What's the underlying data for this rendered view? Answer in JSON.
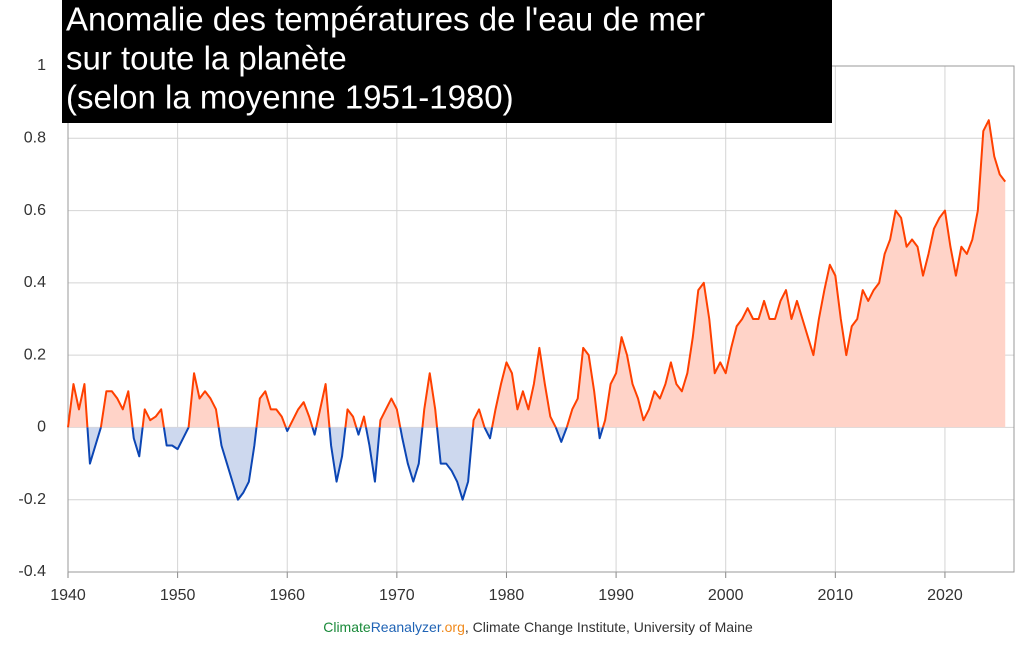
{
  "chart_data": {
    "type": "area-line",
    "title": [
      "Anomalie des températures de l'eau de mer",
      "sur toute la planète",
      "(selon la moyenne 1951-1980)"
    ],
    "source": [
      "Climate",
      "Reanalyzer",
      ".org",
      ", Climate Change Institute, University of Maine"
    ],
    "source_colors": [
      "#1a8a3a",
      "#1f63b5",
      "#f08a1c",
      "#333333"
    ],
    "x": [
      1940,
      1940.5,
      1941,
      1941.5,
      1942,
      1942.5,
      1943,
      1943.5,
      1944,
      1944.5,
      1945,
      1945.5,
      1946,
      1946.5,
      1947,
      1947.5,
      1948,
      1948.5,
      1949,
      1949.5,
      1950,
      1950.5,
      1951,
      1951.5,
      1952,
      1952.5,
      1953,
      1953.5,
      1954,
      1954.5,
      1955,
      1955.5,
      1956,
      1956.5,
      1957,
      1957.5,
      1958,
      1958.5,
      1959,
      1959.5,
      1960,
      1960.5,
      1961,
      1961.5,
      1962,
      1962.5,
      1963,
      1963.5,
      1964,
      1964.5,
      1965,
      1965.5,
      1966,
      1966.5,
      1967,
      1967.5,
      1968,
      1968.5,
      1969,
      1969.5,
      1970,
      1970.5,
      1971,
      1971.5,
      1972,
      1972.5,
      1973,
      1973.5,
      1974,
      1974.5,
      1975,
      1975.5,
      1976,
      1976.5,
      1977,
      1977.5,
      1978,
      1978.5,
      1979,
      1979.5,
      1980,
      1980.5,
      1981,
      1981.5,
      1982,
      1982.5,
      1983,
      1983.5,
      1984,
      1984.5,
      1985,
      1985.5,
      1986,
      1986.5,
      1987,
      1987.5,
      1988,
      1988.5,
      1989,
      1989.5,
      1990,
      1990.5,
      1991,
      1991.5,
      1992,
      1992.5,
      1993,
      1993.5,
      1994,
      1994.5,
      1995,
      1995.5,
      1996,
      1996.5,
      1997,
      1997.5,
      1998,
      1998.5,
      1999,
      1999.5,
      2000,
      2000.5,
      2001,
      2001.5,
      2002,
      2002.5,
      2003,
      2003.5,
      2004,
      2004.5,
      2005,
      2005.5,
      2006,
      2006.5,
      2007,
      2007.5,
      2008,
      2008.5,
      2009,
      2009.5,
      2010,
      2010.5,
      2011,
      2011.5,
      2012,
      2012.5,
      2013,
      2013.5,
      2014,
      2014.5,
      2015,
      2015.5,
      2016,
      2016.5,
      2017,
      2017.5,
      2018,
      2018.5,
      2019,
      2019.5,
      2020,
      2020.5,
      2021,
      2021.5,
      2022,
      2022.5,
      2023,
      2023.5,
      2024,
      2024.5,
      2025,
      2025.5
    ],
    "series": [
      {
        "values": [
          0.0,
          0.12,
          0.05,
          0.12,
          -0.1,
          -0.05,
          0.0,
          0.1,
          0.1,
          0.08,
          0.05,
          0.1,
          -0.03,
          -0.08,
          0.05,
          0.02,
          0.03,
          0.05,
          -0.05,
          -0.05,
          -0.06,
          -0.03,
          0.0,
          0.15,
          0.08,
          0.1,
          0.08,
          0.05,
          -0.05,
          -0.1,
          -0.15,
          -0.2,
          -0.18,
          -0.15,
          -0.05,
          0.08,
          0.1,
          0.05,
          0.05,
          0.03,
          -0.01,
          0.02,
          0.05,
          0.07,
          0.03,
          -0.02,
          0.05,
          0.12,
          -0.05,
          -0.15,
          -0.08,
          0.05,
          0.03,
          -0.02,
          0.03,
          -0.05,
          -0.15,
          0.02,
          0.05,
          0.08,
          0.05,
          -0.03,
          -0.1,
          -0.15,
          -0.1,
          0.05,
          0.15,
          0.05,
          -0.1,
          -0.1,
          -0.12,
          -0.15,
          -0.2,
          -0.15,
          0.02,
          0.05,
          0.0,
          -0.03,
          0.05,
          0.12,
          0.18,
          0.15,
          0.05,
          0.1,
          0.05,
          0.12,
          0.22,
          0.12,
          0.03,
          0.0,
          -0.04,
          0.0,
          0.05,
          0.08,
          0.22,
          0.2,
          0.1,
          -0.03,
          0.02,
          0.12,
          0.15,
          0.25,
          0.2,
          0.12,
          0.08,
          0.02,
          0.05,
          0.1,
          0.08,
          0.12,
          0.18,
          0.12,
          0.1,
          0.15,
          0.25,
          0.38,
          0.4,
          0.3,
          0.15,
          0.18,
          0.15,
          0.22,
          0.28,
          0.3,
          0.33,
          0.3,
          0.3,
          0.35,
          0.3,
          0.3,
          0.35,
          0.38,
          0.3,
          0.35,
          0.3,
          0.25,
          0.2,
          0.3,
          0.38,
          0.45,
          0.42,
          0.3,
          0.2,
          0.28,
          0.3,
          0.38,
          0.35,
          0.38,
          0.4,
          0.48,
          0.52,
          0.6,
          0.58,
          0.5,
          0.52,
          0.5,
          0.42,
          0.48,
          0.55,
          0.58,
          0.6,
          0.5,
          0.42,
          0.5,
          0.48,
          0.52,
          0.6,
          0.82,
          0.85,
          0.75,
          0.7,
          0.68
        ]
      }
    ],
    "color_positive": "#ff4000",
    "fill_positive": "#ffd3c8",
    "color_negative": "#0c46b4",
    "fill_negative": "#cdd8ee",
    "xlim": [
      1940,
      2026.3
    ],
    "xticks": [
      1940,
      1950,
      1960,
      1970,
      1980,
      1990,
      2000,
      2010,
      2020
    ],
    "ylim": [
      -0.4,
      1
    ],
    "yticks": [
      -0.4,
      -0.2,
      0,
      0.2,
      0.4,
      0.6,
      0.8,
      1
    ],
    "grid": true
  }
}
